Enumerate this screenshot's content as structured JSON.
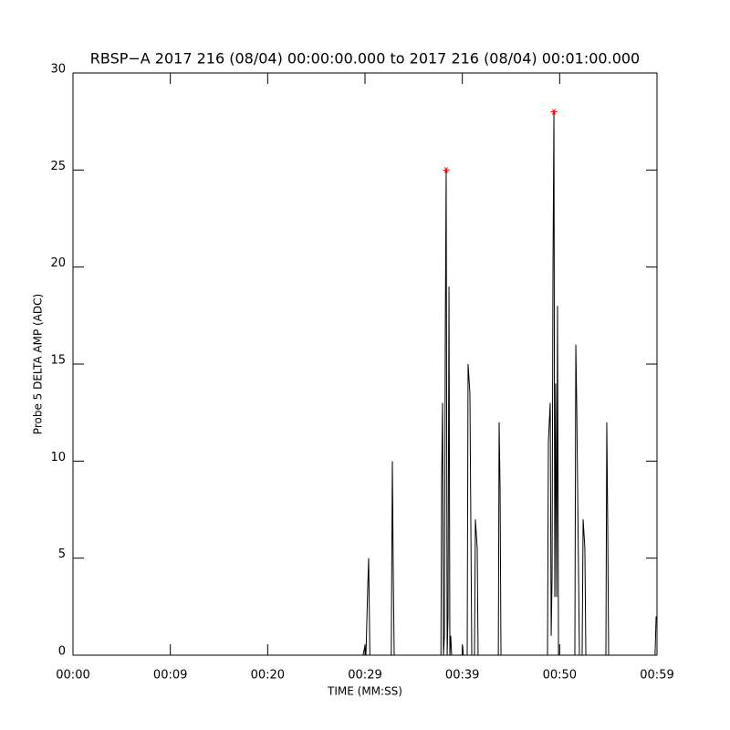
{
  "chart_data": {
    "type": "line",
    "title": "RBSP−A 2017 216 (08/04) 00:00:00.000 to 2017 216 (08/04) 00:01:00.000",
    "xlabel": "TIME (MM:SS)",
    "ylabel": "Probe 5 DELTA AMP (ADC)",
    "xlim": [
      0,
      60
    ],
    "ylim": [
      0,
      30
    ],
    "xticks": [
      {
        "value": 0,
        "label": "00:00"
      },
      {
        "value": 10,
        "label": "00:09"
      },
      {
        "value": 20,
        "label": "00:20"
      },
      {
        "value": 30,
        "label": "00:29"
      },
      {
        "value": 40,
        "label": "00:39"
      },
      {
        "value": 50,
        "label": "00:50"
      },
      {
        "value": 60,
        "label": "00:59"
      }
    ],
    "yticks": [
      0,
      5,
      10,
      15,
      20,
      25,
      30
    ],
    "series": [
      {
        "color": "#000000",
        "x": [
          0,
          29.8,
          30.0,
          30.1,
          30.28,
          30.375,
          30.5,
          32.7,
          32.81,
          32.91,
          33.0,
          37.8,
          37.875,
          37.97,
          38.06,
          38.16,
          38.25,
          38.34,
          38.44,
          38.53,
          38.63,
          38.72,
          38.81,
          38.9,
          39.97,
          40.03,
          40.1,
          40.5,
          40.59,
          40.78,
          40.97,
          41.25,
          41.34,
          41.53,
          41.62,
          43.7,
          43.78,
          43.88,
          43.97,
          48.75,
          48.84,
          49.03,
          49.13,
          49.22,
          49.31,
          49.41,
          49.5,
          49.59,
          49.69,
          49.78,
          49.88,
          51.56,
          51.66,
          51.75,
          52.03,
          52.31,
          52.41,
          52.59,
          52.69,
          54.75,
          54.84,
          54.94,
          55.03,
          59.8,
          59.91
        ],
        "values": [
          0,
          0,
          0.5,
          0,
          3.5,
          5,
          0,
          0,
          10,
          4,
          0,
          0,
          9,
          13,
          0,
          1,
          16.5,
          25,
          0,
          2,
          19,
          0,
          1,
          0,
          0,
          0.5,
          0,
          0,
          15,
          13.5,
          0,
          0,
          7,
          5.5,
          0,
          0,
          12,
          8.5,
          0,
          0,
          11,
          13,
          1,
          4,
          19.5,
          28,
          3,
          14,
          3,
          18,
          0,
          0,
          16,
          13,
          0,
          0,
          7,
          5.5,
          0,
          0,
          12,
          6.5,
          0,
          0,
          2
        ]
      },
      {
        "color": "#ff0000",
        "marker": "asterisk",
        "x": [
          38.34,
          49.41
        ],
        "values": [
          25,
          28
        ]
      }
    ]
  }
}
